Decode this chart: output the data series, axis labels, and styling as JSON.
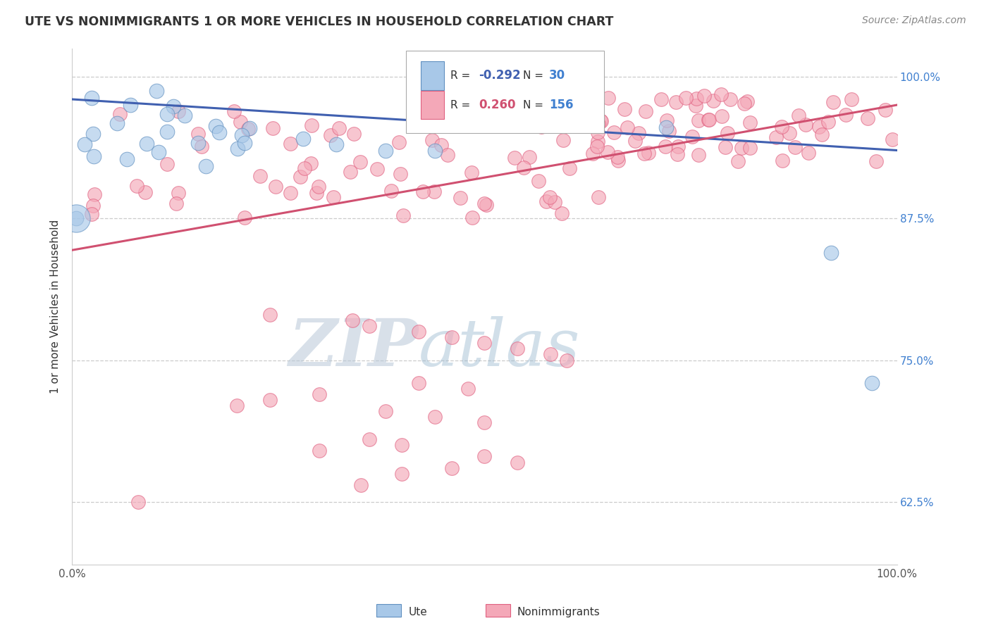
{
  "title": "UTE VS NONIMMIGRANTS 1 OR MORE VEHICLES IN HOUSEHOLD CORRELATION CHART",
  "source": "Source: ZipAtlas.com",
  "ylabel": "1 or more Vehicles in Household",
  "xlim": [
    0.0,
    1.0
  ],
  "ylim": [
    0.57,
    1.025
  ],
  "legend_r_ute": "-0.292",
  "legend_n_ute": "30",
  "legend_r_nonimm": "0.260",
  "legend_n_nonimm": "156",
  "ute_color": "#a8c8e8",
  "nonimm_color": "#f4a8b8",
  "ute_edge_color": "#6090c0",
  "nonimm_edge_color": "#e06080",
  "ute_line_color": "#4060b0",
  "nonimm_line_color": "#d05070",
  "r_color_ute": "#4060b0",
  "r_color_nonimm": "#d05070",
  "n_color": "#4080d0",
  "text_color": "#333333",
  "grid_color": "#cccccc",
  "watermark_color": "#ccd8e8",
  "background_color": "#ffffff",
  "ute_scatter_seed": 42,
  "nonimm_scatter_seed": 123,
  "ute_line_x0": 0.0,
  "ute_line_y0": 0.98,
  "ute_line_x1": 1.0,
  "ute_line_y1": 0.935,
  "nonimm_line_x0": 0.0,
  "nonimm_line_y0": 0.847,
  "nonimm_line_x1": 1.0,
  "nonimm_line_y1": 0.975
}
